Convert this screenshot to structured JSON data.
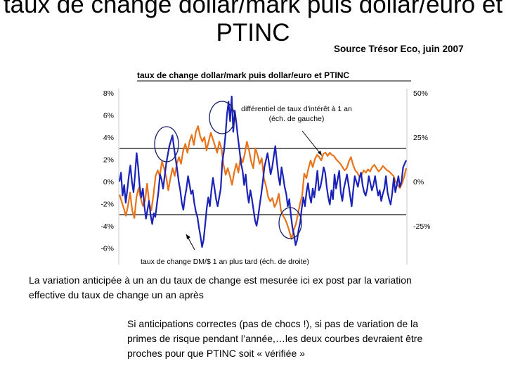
{
  "slide": {
    "title_line1": "taux de change dollar/mark puis dollar/euro et",
    "title_line2": "PTINC",
    "source": "Source Trésor Eco, juin 2007",
    "paragraph1": "La variation anticipée à un an du taux de change est mesurée ici ex post par la variation effective du taux de change un an après",
    "paragraph2": " Si anticipations correctes (pas de chocs !), si pas de variation de la primes de risque pendant l’année,…les deux courbes devraient être proches pour que PTINC soit « vérifiée »"
  },
  "chart_data": {
    "type": "line",
    "title": "taux de change dollar/mark puis dollar/euro et PTINC",
    "left_axis": {
      "ticks": [
        "8%",
        "6%",
        "4%",
        "2%",
        "0%",
        "-2%",
        "-4%",
        "-6%"
      ],
      "ylim": [
        -7,
        8
      ]
    },
    "right_axis": {
      "ticks": [
        "50%",
        "25%",
        "0%",
        "-25%"
      ],
      "ylim": [
        -43.75,
        50
      ]
    },
    "grid": false,
    "series": [
      {
        "name": "différentiel de taux d'intérêt à 1 an (éch. de gauche)",
        "color": "#e8731a",
        "axis": "left",
        "values": [
          -1.2,
          -1.8,
          -2.4,
          -3.1,
          -2.2,
          -1.0,
          -2.6,
          -3.3,
          -1.4,
          -0.6,
          -1.5,
          -2.2,
          -1.8,
          -0.2,
          -2.0,
          -2.6,
          -1.2,
          0.5,
          1.0,
          0.5,
          1.8,
          1.2,
          0.4,
          -0.8,
          0.3,
          1.2,
          0.5,
          1.6,
          2.2,
          1.6,
          2.8,
          3.4,
          2.6,
          3.6,
          4.2,
          3.3,
          4.5,
          5.0,
          4.1,
          3.6,
          4.0,
          2.8,
          3.6,
          4.4,
          3.8,
          3.2,
          2.6,
          3.6,
          3.0,
          1.5,
          0.6,
          1.2,
          0.5,
          -0.3,
          0.8,
          1.6,
          0.8,
          2.2,
          1.7,
          2.5,
          3.6,
          2.8,
          1.8,
          1.2,
          3.0,
          2.4,
          1.6,
          2.1,
          0.3,
          -0.4,
          -1.4,
          -1.8,
          -1.5,
          -2.3,
          -1.9,
          -1.1,
          -2.6,
          -3.1,
          -3.4,
          -3.9,
          -4.5,
          -5.2,
          -4.4,
          -3.9,
          -3.0,
          -2.0,
          -1.3,
          0.7,
          0.3,
          1.2,
          1.9,
          1.3,
          2.0,
          2.4,
          2.2,
          1.9,
          2.5,
          2.6,
          2.3,
          2.6,
          2.4,
          2.3,
          2.0,
          1.8,
          1.6,
          1.3,
          1.0,
          1.2,
          1.8,
          2.2,
          1.5,
          1.0,
          0.8,
          0.4,
          0.6,
          1.0,
          0.8,
          1.1,
          0.9,
          1.3,
          1.5,
          1.2,
          0.9,
          1.1,
          1.4,
          1.2,
          1.0,
          0.9,
          0.7,
          0.5,
          0.0,
          -0.3,
          -0.6,
          -0.2,
          0.4,
          1.2
        ]
      },
      {
        "name": "taux de change DM/$ 1 an plus tard (éch. de droite)",
        "color": "#1a22b8",
        "axis": "right",
        "values": [
          0,
          5,
          -8,
          -2,
          -12,
          -5,
          3,
          9,
          0,
          -6,
          4,
          16,
          8,
          -3,
          -9,
          -4,
          -14,
          -21,
          -16,
          -11,
          -19,
          -24,
          -18,
          -20,
          -13,
          -6,
          4,
          1,
          -4,
          3,
          10,
          15,
          20,
          23,
          26,
          19,
          13,
          7,
          0,
          -5,
          -12,
          -16,
          -9,
          -4,
          3,
          -2,
          -7,
          -5,
          -12,
          -17,
          -20,
          -26,
          -31,
          -37,
          -33,
          -24,
          -15,
          -9,
          -14,
          -5,
          2,
          -4,
          -10,
          -14,
          -9,
          -4,
          11,
          17,
          26,
          38,
          45,
          34,
          48,
          28,
          40,
          33,
          25,
          18,
          10,
          6,
          -2,
          4,
          -6,
          -12,
          -5,
          -10,
          -16,
          -22,
          -25,
          -20,
          -13,
          -7,
          0,
          8,
          12,
          16,
          10,
          4,
          8,
          14,
          20,
          11,
          3,
          -2,
          8,
          3,
          -3,
          -7,
          -14,
          -10,
          -19,
          -26,
          -30,
          -36,
          -33,
          -27,
          -23,
          -15,
          -9,
          -14,
          -6,
          -1,
          -8,
          -12,
          -4,
          -9,
          -2,
          6,
          -5,
          -3,
          2,
          8,
          5,
          -3,
          -9,
          -13,
          -5,
          -10,
          4,
          -4,
          1,
          6,
          -6,
          -11,
          -4,
          0,
          4,
          -2,
          -8,
          -14,
          -5,
          3,
          0,
          -3,
          2,
          5,
          -2,
          -6,
          -8,
          -4,
          3,
          -1,
          -5,
          -2,
          3,
          -3,
          -8,
          -5,
          -11,
          -7,
          -4,
          3,
          -6,
          -10,
          -13,
          -7,
          2,
          -6,
          -2,
          3,
          -3,
          0,
          8,
          10,
          12
        ]
      }
    ],
    "annotations": [
      {
        "text_lines": [
          "différentiel de taux d'intérêt à 1 an",
          "(éch. de gauche)"
        ]
      },
      {
        "text": "taux de change DM/$ 1 an plus tard (éch. de droite)"
      }
    ]
  }
}
